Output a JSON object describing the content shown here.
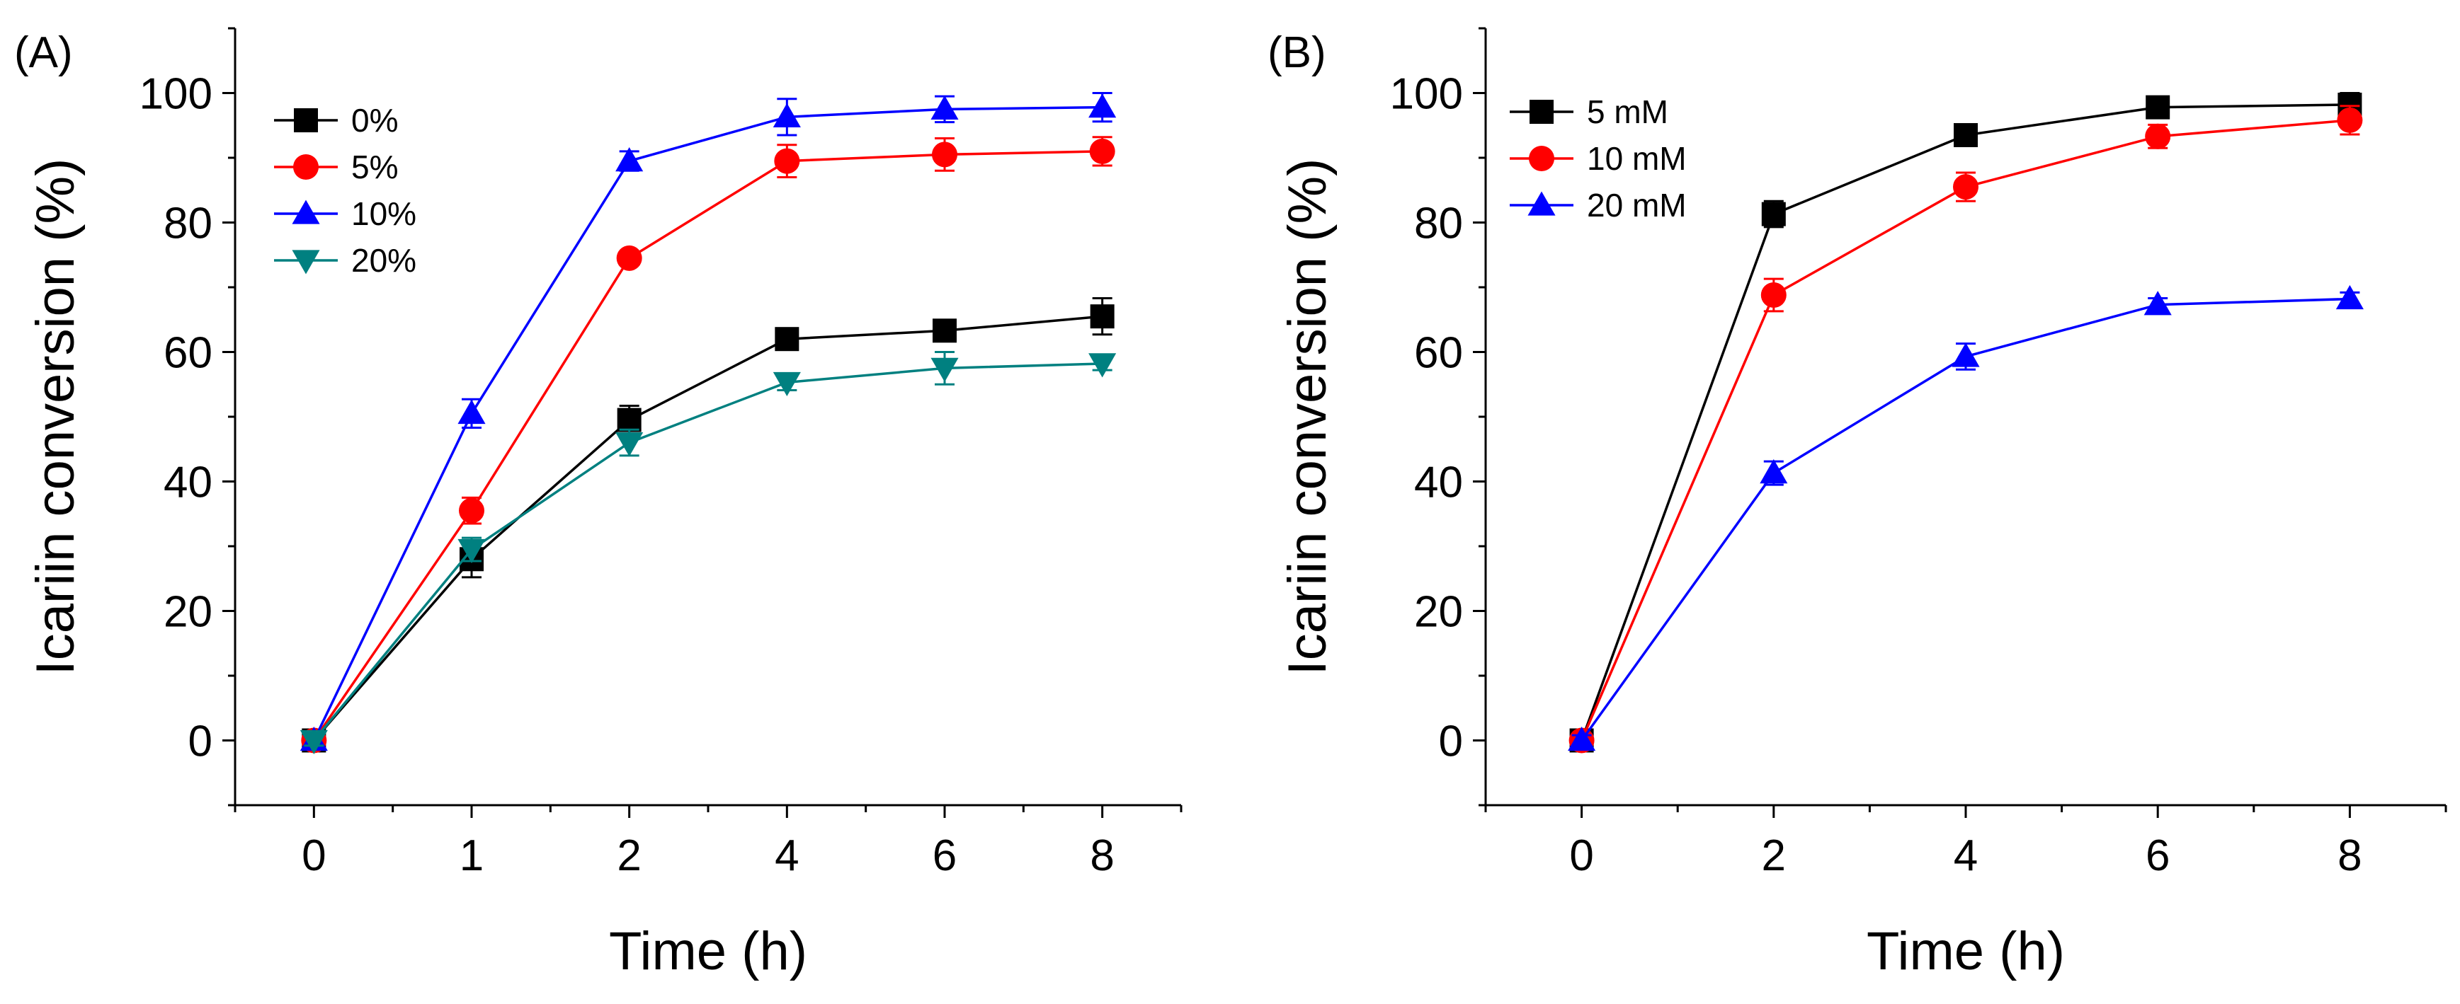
{
  "chart_data": [
    {
      "type": "line",
      "panel_label": "(A)",
      "xlabel": "Time (h)",
      "ylabel": "Icariin conversion (%)",
      "categories": [
        "0",
        "1",
        "2",
        "4",
        "6",
        "8"
      ],
      "ylim": [
        -10,
        110
      ],
      "yticks": [
        0,
        20,
        40,
        60,
        80,
        100
      ],
      "legend_position": "top-left",
      "series": [
        {
          "name": "0%",
          "color": "#000000",
          "marker": "square",
          "values": [
            0,
            28,
            49.5,
            62,
            63.3,
            65.5
          ],
          "errors": [
            0.8,
            2.8,
            2.2,
            1.2,
            1.2,
            2.8
          ]
        },
        {
          "name": "5%",
          "color": "#ff0000",
          "marker": "circle",
          "values": [
            0,
            35.5,
            74.5,
            89.5,
            90.5,
            91
          ],
          "errors": [
            0.8,
            2.0,
            1.0,
            2.5,
            2.5,
            2.2
          ]
        },
        {
          "name": "10%",
          "color": "#0000ff",
          "marker": "triangle-up",
          "values": [
            0,
            50.5,
            89.5,
            96.3,
            97.5,
            97.8
          ],
          "errors": [
            0.8,
            2.2,
            1.5,
            2.8,
            2.0,
            2.2
          ]
        },
        {
          "name": "20%",
          "color": "#008080",
          "marker": "triangle-down",
          "values": [
            0,
            29.5,
            46,
            55.3,
            57.5,
            58.2
          ],
          "errors": [
            0.8,
            1.8,
            2.0,
            1.2,
            2.5,
            1.0
          ]
        }
      ]
    },
    {
      "type": "line",
      "panel_label": "(B)",
      "xlabel": "Time (h)",
      "ylabel": "Icariin conversion (%)",
      "x": [
        0,
        2,
        4,
        6,
        8
      ],
      "xlim": [
        -1,
        9
      ],
      "xticks": [
        0,
        2,
        4,
        6,
        8
      ],
      "ylim": [
        -10,
        110
      ],
      "yticks": [
        0,
        20,
        40,
        60,
        80,
        100
      ],
      "legend_position": "top-left",
      "series": [
        {
          "name": "5 mM",
          "color": "#000000",
          "marker": "square",
          "values": [
            0,
            81.3,
            93.5,
            97.8,
            98.2
          ],
          "errors": [
            0.8,
            2.0,
            1.5,
            1.5,
            1.8
          ]
        },
        {
          "name": "10 mM",
          "color": "#ff0000",
          "marker": "circle",
          "values": [
            0,
            68.8,
            85.5,
            93.3,
            95.8
          ],
          "errors": [
            0.8,
            2.5,
            2.2,
            1.8,
            2.2
          ]
        },
        {
          "name": "20 mM",
          "color": "#0000ff",
          "marker": "triangle-up",
          "values": [
            0,
            41.3,
            59.3,
            67.3,
            68.2
          ],
          "errors": [
            0.8,
            1.8,
            2.0,
            1.0,
            1.0
          ]
        }
      ]
    }
  ]
}
